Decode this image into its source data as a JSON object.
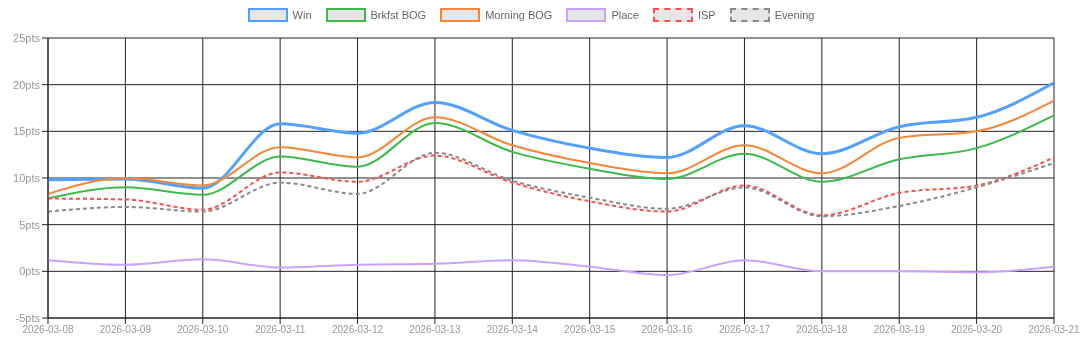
{
  "chart_data": {
    "type": "line",
    "categories": [
      "2026-03-08",
      "2026-03-09",
      "2026-03-10",
      "2026-03-11",
      "2026-03-12",
      "2026-03-13",
      "2026-03-14",
      "2026-03-15",
      "2026-03-16",
      "2026-03-17",
      "2026-03-18",
      "2026-03-19",
      "2026-03-20",
      "2026-03-21"
    ],
    "series": [
      {
        "name": "Win",
        "color": "#54a0ff",
        "line_style": "solid",
        "values": [
          9.8,
          9.9,
          8.9,
          15.8,
          14.8,
          18.1,
          15.1,
          13.2,
          12.2,
          15.6,
          12.6,
          15.5,
          16.5,
          20.2
        ]
      },
      {
        "name": "Brkfst BOG",
        "color": "#3cba4a",
        "line_style": "solid",
        "values": [
          7.8,
          9.0,
          8.2,
          12.3,
          11.2,
          15.9,
          12.8,
          11.0,
          9.9,
          12.6,
          9.6,
          12.0,
          13.2,
          16.7
        ]
      },
      {
        "name": "Morning BOG",
        "color": "#f5873a",
        "line_style": "solid",
        "values": [
          8.3,
          10.0,
          9.2,
          13.3,
          12.2,
          16.5,
          13.5,
          11.6,
          10.5,
          13.5,
          10.5,
          14.3,
          15.0,
          18.3
        ]
      },
      {
        "name": "Place",
        "color": "#c9a1ff",
        "line_style": "solid",
        "values": [
          1.2,
          0.7,
          1.3,
          0.4,
          0.7,
          0.8,
          1.2,
          0.5,
          -0.4,
          1.2,
          0.0,
          0.0,
          -0.1,
          0.5
        ]
      },
      {
        "name": "ISP",
        "color": "#ff4d4d",
        "line_style": "dashed",
        "values": [
          7.8,
          7.7,
          6.6,
          10.6,
          9.6,
          12.4,
          9.5,
          7.5,
          6.4,
          9.2,
          6.0,
          8.4,
          9.2,
          12.2
        ]
      },
      {
        "name": "Evening",
        "color": "#8a8a8a",
        "line_style": "dashed",
        "values": [
          6.4,
          6.9,
          6.4,
          9.5,
          8.3,
          12.7,
          9.7,
          7.9,
          6.7,
          9.0,
          5.9,
          7.0,
          9.0,
          11.6
        ]
      }
    ],
    "ylim": [
      -5,
      25
    ],
    "yticks": [
      {
        "value": -5,
        "label": "-5pts"
      },
      {
        "value": 0,
        "label": "0pts"
      },
      {
        "value": 5,
        "label": "5pts"
      },
      {
        "value": 10,
        "label": "10pts"
      },
      {
        "value": 15,
        "label": "15pts"
      },
      {
        "value": 20,
        "label": "20pts"
      },
      {
        "value": 25,
        "label": "25pts"
      }
    ],
    "grid": true,
    "legend": "top",
    "marker": "none"
  }
}
